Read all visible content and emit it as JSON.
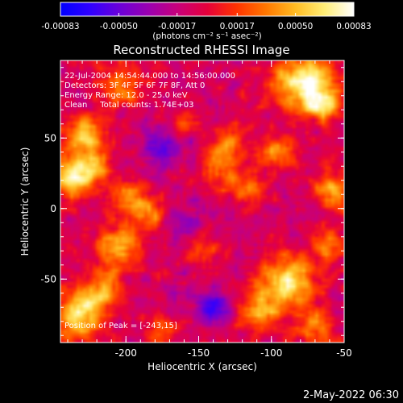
{
  "chart_data": {
    "type": "heatmap",
    "title": "Reconstructed RHESSI Image",
    "xlabel": "Heliocentric X (arcsec)",
    "ylabel": "Heliocentric Y (arcsec)",
    "xlim": [
      -245,
      -50
    ],
    "ylim": [
      -95,
      105
    ],
    "x_ticks": [
      -200,
      -150,
      -100,
      -50
    ],
    "x_tick_labels": [
      "-200",
      "-150",
      "-100",
      "-50"
    ],
    "y_ticks": [
      -50,
      0,
      50
    ],
    "y_tick_labels": [
      "-50",
      "0",
      "50"
    ],
    "colorbar": {
      "min": -0.00083,
      "max": 0.00083,
      "ticks": [
        -0.00083,
        -0.0005,
        -0.00017,
        0.00017,
        0.0005,
        0.00083
      ],
      "tick_labels": [
        "-0.00083",
        "-0.00050",
        "-0.00017",
        "0.00017",
        "0.00050",
        "0.00083"
      ],
      "unit_label": "(photons cm⁻² s⁻¹ asec⁻²)",
      "colormap": [
        "#0000ff",
        "#2f00ff",
        "#6a00d8",
        "#9a00b0",
        "#c8007a",
        "#e6003a",
        "#ff3300",
        "#ff7700",
        "#ffbb22",
        "#ffee77",
        "#ffffff"
      ]
    },
    "background_color": "#3a2075",
    "annotations": [
      "22-Jul-2004 14:54:44.000 to 14:56:00.000",
      "Detectors: 3F 4F 5F 6F 7F 8F, Att 0",
      "Energy Range: 12.0 - 25.0 keV",
      "Clean     Total counts: 1.74E+03"
    ],
    "peak_label": "Position of Peak = [-243,15]",
    "sources": [
      {
        "x": -78,
        "y": 90,
        "sigma": 14,
        "amp": 0.00083
      },
      {
        "x": -64,
        "y": 75,
        "sigma": 9,
        "amp": 0.0006
      },
      {
        "x": -205,
        "y": 88,
        "sigma": 12,
        "amp": 0.0004
      },
      {
        "x": -228,
        "y": 52,
        "sigma": 10,
        "amp": 0.0006
      },
      {
        "x": -238,
        "y": 22,
        "sigma": 10,
        "amp": 0.00082
      },
      {
        "x": -222,
        "y": 28,
        "sigma": 8,
        "amp": 0.0005
      },
      {
        "x": -196,
        "y": 6,
        "sigma": 9,
        "amp": 0.0005
      },
      {
        "x": -205,
        "y": -28,
        "sigma": 11,
        "amp": 0.0006
      },
      {
        "x": -178,
        "y": -5,
        "sigma": 8,
        "amp": 0.00035
      },
      {
        "x": -232,
        "y": -75,
        "sigma": 12,
        "amp": 0.00075
      },
      {
        "x": -215,
        "y": -58,
        "sigma": 9,
        "amp": 0.0005
      },
      {
        "x": -88,
        "y": -52,
        "sigma": 13,
        "amp": 0.00075
      },
      {
        "x": -108,
        "y": -72,
        "sigma": 10,
        "amp": 0.00055
      },
      {
        "x": -70,
        "y": -85,
        "sigma": 9,
        "amp": 0.0004
      },
      {
        "x": -135,
        "y": 32,
        "sigma": 9,
        "amp": 0.00045
      },
      {
        "x": -118,
        "y": 14,
        "sigma": 8,
        "amp": 0.00045
      },
      {
        "x": -98,
        "y": 40,
        "sigma": 9,
        "amp": 0.0004
      },
      {
        "x": -128,
        "y": 50,
        "sigma": 8,
        "amp": 0.00035
      },
      {
        "x": -160,
        "y": 60,
        "sigma": 7,
        "amp": 0.0003
      },
      {
        "x": -58,
        "y": 12,
        "sigma": 9,
        "amp": 0.00055
      },
      {
        "x": -60,
        "y": -25,
        "sigma": 8,
        "amp": 0.00045
      },
      {
        "x": -148,
        "y": -30,
        "sigma": 8,
        "amp": 0.0003
      },
      {
        "x": -175,
        "y": -85,
        "sigma": 8,
        "amp": 0.0003
      },
      {
        "x": -140,
        "y": -70,
        "sigma": 8,
        "amp": -0.0005
      },
      {
        "x": -175,
        "y": 45,
        "sigma": 10,
        "amp": -0.0004
      },
      {
        "x": -160,
        "y": -10,
        "sigma": 9,
        "amp": -0.0003
      }
    ]
  },
  "footer": {
    "timestamp": "2-May-2022 06:30"
  }
}
